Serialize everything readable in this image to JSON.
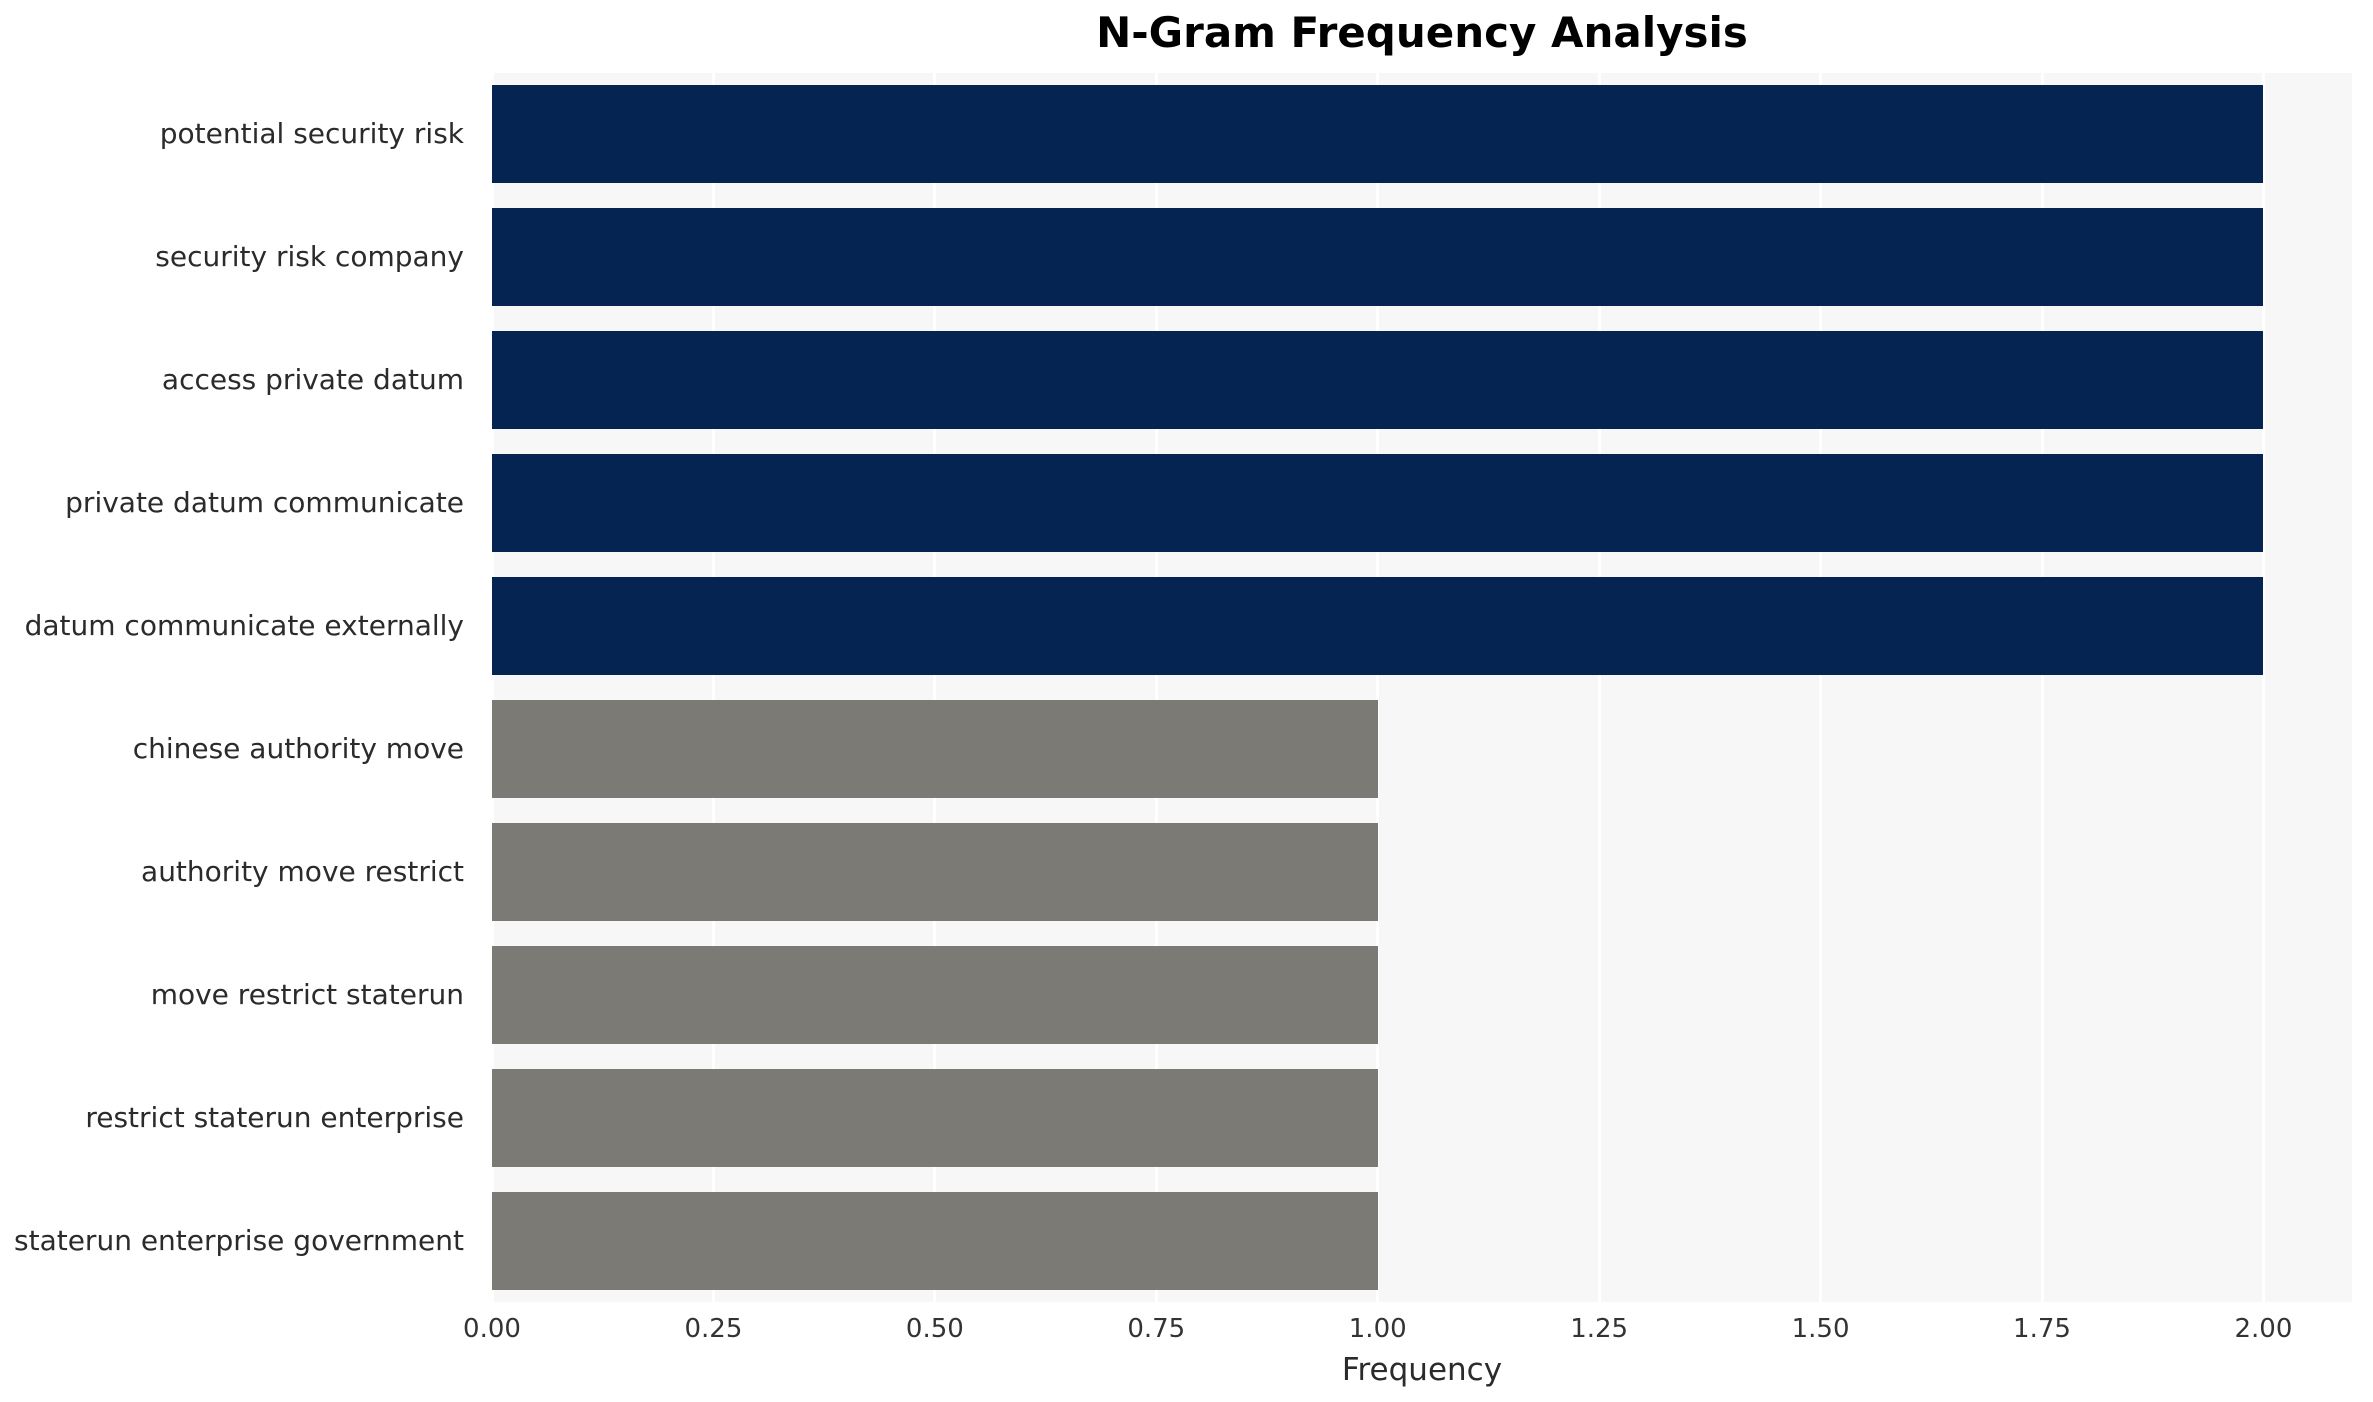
{
  "title": "N-Gram Frequency Analysis",
  "chart_data": {
    "type": "bar",
    "orientation": "horizontal",
    "title": "N-Gram Frequency Analysis",
    "xlabel": "Frequency",
    "ylabel": "",
    "categories": [
      "potential security risk",
      "security risk company",
      "access private datum",
      "private datum communicate",
      "datum communicate externally",
      "chinese authority move",
      "authority move restrict",
      "move restrict staterun",
      "restrict staterun enterprise",
      "staterun enterprise government"
    ],
    "values": [
      2,
      2,
      2,
      2,
      2,
      1,
      1,
      1,
      1,
      1
    ],
    "bar_colors": [
      "#062452",
      "#062452",
      "#062452",
      "#062452",
      "#062452",
      "#7b7a75",
      "#7b7a75",
      "#7b7a75",
      "#7b7a75",
      "#7b7a75"
    ],
    "x_ticks": [
      "0.00",
      "0.25",
      "0.50",
      "0.75",
      "1.00",
      "1.25",
      "1.50",
      "1.75",
      "2.00"
    ],
    "x_tick_values": [
      0,
      0.25,
      0.5,
      0.75,
      1.0,
      1.25,
      1.5,
      1.75,
      2.0
    ],
    "xlim": [
      0,
      2.1
    ],
    "grid": "vertical-white-lines",
    "legend": "none",
    "panel_background": "#f7f7f7",
    "gridline_color": "#ffffff"
  },
  "colors": {
    "navy_bar": "#062452",
    "gray_bar": "#7b7a75",
    "panel_bg": "#f7f7f7",
    "figure_bg": "#ffffff",
    "text": "#2b2b2b"
  }
}
